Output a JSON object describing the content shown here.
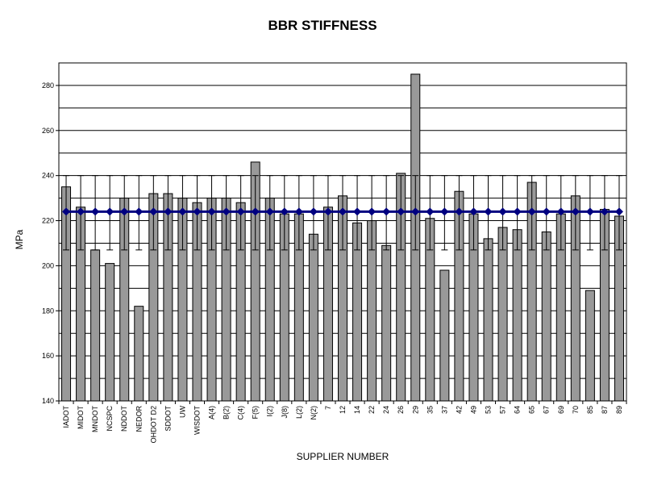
{
  "chart_data": {
    "type": "bar",
    "title": "BBR STIFFNESS",
    "xlabel": "SUPPLIER NUMBER",
    "ylabel": "MPa",
    "ylim": [
      140,
      290
    ],
    "yticks": [
      140,
      160,
      180,
      200,
      220,
      240,
      260,
      280
    ],
    "grid": true,
    "categories": [
      "IADOT",
      "MIDOT",
      "MNDOT",
      "NCSPC",
      "NDDOT",
      "NEDOR",
      "OHDOT D2",
      "SDDOT",
      "UW",
      "WISDOT",
      "A(4)",
      "B(2)",
      "C(4)",
      "F(5)",
      "I(2)",
      "J(8)",
      "L(2)",
      "N(2)",
      "7",
      "12",
      "14",
      "22",
      "24",
      "26",
      "29",
      "35",
      "37",
      "42",
      "49",
      "53",
      "57",
      "64",
      "65",
      "67",
      "69",
      "70",
      "85",
      "87",
      "89"
    ],
    "values": [
      235,
      226,
      207,
      201,
      230,
      182,
      232,
      232,
      230,
      228,
      230,
      230,
      228,
      246,
      230,
      223,
      223,
      214,
      226,
      231,
      219,
      220,
      209,
      241,
      285,
      221,
      198,
      233,
      223,
      212,
      217,
      216,
      237,
      215,
      223,
      231,
      189,
      225,
      222
    ],
    "mean_line": {
      "value": 224,
      "error_low": 207,
      "error_high": 240,
      "marker": "diamond"
    },
    "colors": {
      "bar": "#999999",
      "mean_line": "#000080",
      "error_bar": "#000000"
    }
  }
}
